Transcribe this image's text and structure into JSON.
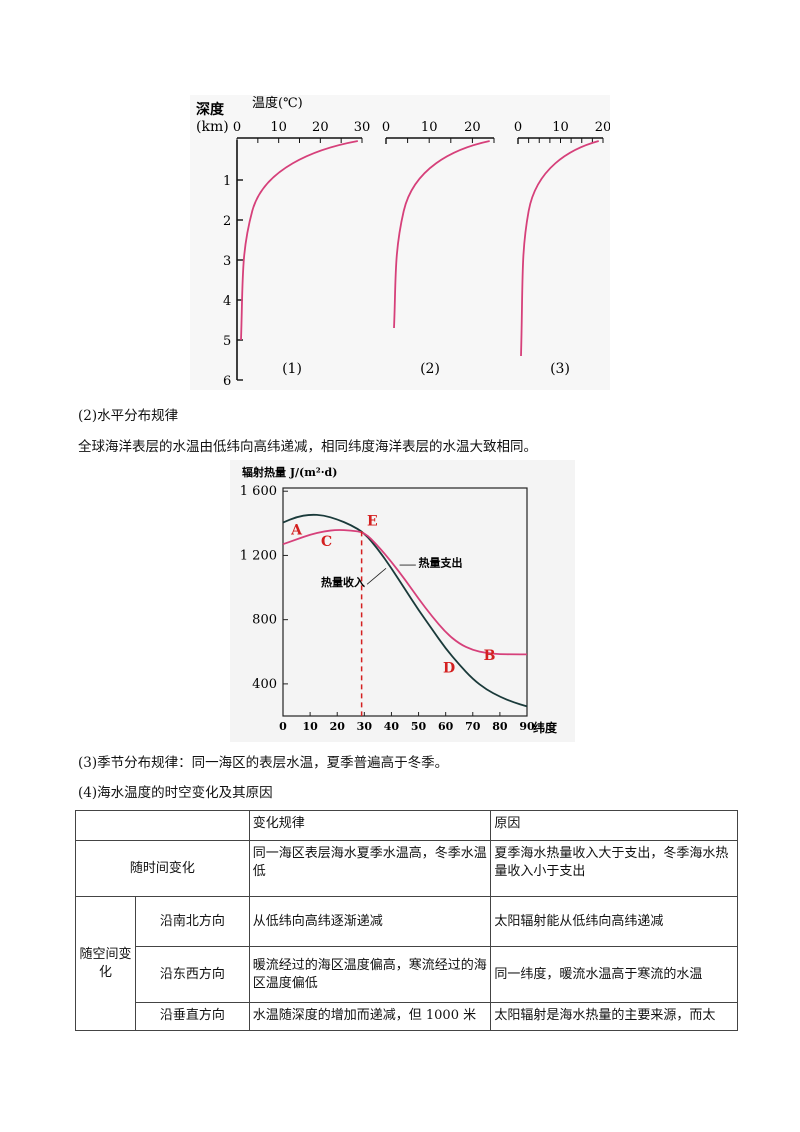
{
  "fig1": {
    "depth_label": "深度",
    "depth_unit": "(km)",
    "temp_label": "温度(℃)",
    "depth_ticks": [
      "1",
      "2",
      "3",
      "4",
      "5",
      "6"
    ],
    "panels": [
      {
        "caption": "(1)",
        "ticks": [
          "0",
          "10",
          "20",
          "30"
        ],
        "max": 30,
        "surface_temp": 29
      },
      {
        "caption": "(2)",
        "ticks": [
          "0",
          "10",
          "20"
        ],
        "max": 25,
        "surface_temp": 24
      },
      {
        "caption": "(3)",
        "ticks": [
          "0",
          "10",
          "20"
        ],
        "max": 20,
        "surface_temp": 19
      }
    ],
    "curve_color": "#d6407a"
  },
  "sec2_title": "(2)水平分布规律",
  "sec2_text": "全球海洋表层的水温由低纬向高纬递减，相同纬度海洋表层的水温大致相同。",
  "chart_data": {
    "type": "line",
    "ylabel": "辐射热量 J/(m²·d)",
    "xlabel": "纬度",
    "x_ticks": [
      "0",
      "10",
      "20",
      "30",
      "40",
      "50",
      "60",
      "70",
      "80",
      "90"
    ],
    "y_ticks": [
      "1 600",
      "1 200",
      "800",
      "400"
    ],
    "xlim": [
      0,
      90
    ],
    "ylim": [
      200,
      1620
    ],
    "series": [
      {
        "name": "热量收入",
        "color": "#1a3a3a",
        "points": [
          [
            0,
            1405
          ],
          [
            5,
            1440
          ],
          [
            10,
            1455
          ],
          [
            15,
            1450
          ],
          [
            20,
            1425
          ],
          [
            25,
            1390
          ],
          [
            30,
            1340
          ],
          [
            35,
            1240
          ],
          [
            40,
            1120
          ],
          [
            45,
            990
          ],
          [
            50,
            860
          ],
          [
            55,
            740
          ],
          [
            60,
            620
          ],
          [
            65,
            520
          ],
          [
            70,
            430
          ],
          [
            75,
            365
          ],
          [
            80,
            320
          ],
          [
            85,
            285
          ],
          [
            90,
            260
          ]
        ]
      },
      {
        "name": "热量支出",
        "color": "#d6407a",
        "points": [
          [
            0,
            1270
          ],
          [
            5,
            1300
          ],
          [
            10,
            1330
          ],
          [
            15,
            1350
          ],
          [
            20,
            1360
          ],
          [
            25,
            1355
          ],
          [
            30,
            1345
          ],
          [
            35,
            1260
          ],
          [
            40,
            1160
          ],
          [
            45,
            1050
          ],
          [
            50,
            930
          ],
          [
            55,
            820
          ],
          [
            60,
            720
          ],
          [
            65,
            650
          ],
          [
            70,
            610
          ],
          [
            75,
            592
          ],
          [
            80,
            585
          ],
          [
            85,
            584
          ],
          [
            90,
            584
          ]
        ]
      }
    ],
    "marker_x": 29,
    "labels": {
      "A": "A",
      "B": "B",
      "C": "C",
      "D": "D",
      "E": "E"
    },
    "label_color": "#d42020"
  },
  "sec3_text": "(3)季节分布规律：同一海区的表层水温，夏季普遍高于冬季。",
  "sec4_title": "(4)海水温度的时空变化及其原因",
  "table": {
    "head_rule": "变化规律",
    "head_reason": "原因",
    "row_time_label": "随时间变化",
    "row_time_rule": "同一海区表层海水夏季水温高，冬季水温低",
    "row_time_reason": "夏季海水热量收入大于支出，冬季海水热量收入小于支出",
    "space_label": "随空间变化",
    "ns_label": "沿南北方向",
    "ns_rule": "从低纬向高纬逐渐递减",
    "ns_reason": "太阳辐射能从低纬向高纬递减",
    "ew_label": "沿东西方向",
    "ew_rule": "暖流经过的海区温度偏高，寒流经过的海区温度偏低",
    "ew_reason": "同一纬度，暖流水温高于寒流的水温",
    "v_label": "沿垂直方向",
    "v_rule": "水温随深度的增加而递减，但 1000 米",
    "v_reason": "太阳辐射是海水热量的主要来源，而太"
  }
}
